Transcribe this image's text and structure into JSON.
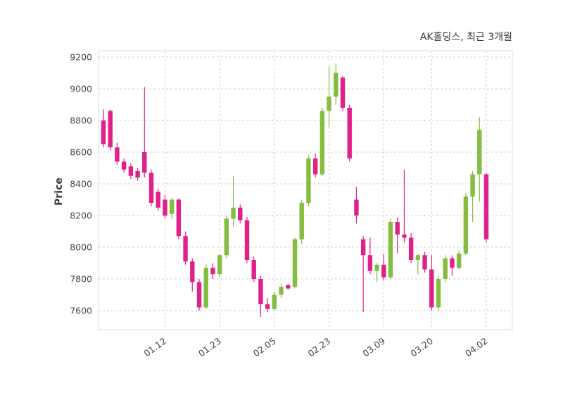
{
  "chart_data": {
    "type": "candlestick",
    "title": "AK홀딩스, 최근 3개월",
    "ylabel": "Price",
    "grid": "dashed",
    "legend": "none",
    "ylim": [
      7480,
      9240
    ],
    "y_ticks": [
      7600,
      7800,
      8000,
      8200,
      8400,
      8600,
      8800,
      9000,
      9200
    ],
    "x_tick_labels": [
      "01.12",
      "01.23",
      "02.05",
      "02.23",
      "03.09",
      "03.20",
      "04.02"
    ],
    "x_tick_indices": [
      9,
      17,
      25,
      33,
      41,
      48,
      56
    ],
    "up_color": "#84bd3f",
    "down_color": "#e0218a",
    "candles_format": [
      "open",
      "high",
      "low",
      "close"
    ],
    "candles": [
      [
        8800,
        8870,
        8630,
        8650
      ],
      [
        8860,
        8870,
        8610,
        8630
      ],
      [
        8630,
        8660,
        8520,
        8540
      ],
      [
        8540,
        8560,
        8470,
        8490
      ],
      [
        8510,
        8530,
        8430,
        8450
      ],
      [
        8480,
        8500,
        8420,
        8440
      ],
      [
        8600,
        9010,
        8440,
        8470
      ],
      [
        8470,
        8490,
        8260,
        8280
      ],
      [
        8350,
        8370,
        8230,
        8250
      ],
      [
        8300,
        8330,
        8180,
        8200
      ],
      [
        8210,
        8310,
        8180,
        8300
      ],
      [
        8300,
        8310,
        8050,
        8070
      ],
      [
        8070,
        8100,
        7890,
        7910
      ],
      [
        7910,
        7930,
        7720,
        7780
      ],
      [
        7780,
        7800,
        7600,
        7620
      ],
      [
        7620,
        7890,
        7610,
        7870
      ],
      [
        7870,
        7900,
        7800,
        7830
      ],
      [
        7830,
        7960,
        7810,
        7950
      ],
      [
        7950,
        8200,
        7930,
        8180
      ],
      [
        8180,
        8450,
        8130,
        8250
      ],
      [
        8250,
        8270,
        8150,
        8170
      ],
      [
        8170,
        8190,
        7900,
        7920
      ],
      [
        7920,
        7940,
        7780,
        7800
      ],
      [
        7800,
        7820,
        7560,
        7640
      ],
      [
        7640,
        7680,
        7590,
        7610
      ],
      [
        7610,
        7720,
        7600,
        7700
      ],
      [
        7700,
        7770,
        7680,
        7750
      ],
      [
        7760,
        7770,
        7730,
        7740
      ],
      [
        7750,
        8060,
        7740,
        8050
      ],
      [
        8050,
        8300,
        8020,
        8280
      ],
      [
        8280,
        8580,
        8260,
        8560
      ],
      [
        8560,
        8590,
        8440,
        8460
      ],
      [
        8460,
        8880,
        8450,
        8860
      ],
      [
        8860,
        9140,
        8760,
        8950
      ],
      [
        8950,
        9160,
        8900,
        9100
      ],
      [
        9070,
        9080,
        8860,
        8880
      ],
      [
        8880,
        8900,
        8540,
        8560
      ],
      [
        8300,
        8380,
        8150,
        8200
      ],
      [
        8050,
        8070,
        7590,
        7950
      ],
      [
        7950,
        8060,
        7830,
        7850
      ],
      [
        7850,
        7900,
        7780,
        7890
      ],
      [
        7890,
        7960,
        7790,
        7810
      ],
      [
        7810,
        8180,
        7800,
        8160
      ],
      [
        8160,
        8190,
        7960,
        8080
      ],
      [
        8080,
        8490,
        8030,
        8060
      ],
      [
        8060,
        8090,
        7900,
        7920
      ],
      [
        7920,
        7960,
        7830,
        7950
      ],
      [
        7950,
        7970,
        7840,
        7860
      ],
      [
        7860,
        7950,
        7600,
        7620
      ],
      [
        7620,
        7820,
        7600,
        7800
      ],
      [
        7800,
        7950,
        7780,
        7930
      ],
      [
        7930,
        7950,
        7820,
        7870
      ],
      [
        7870,
        7980,
        7860,
        7960
      ],
      [
        7960,
        8340,
        7950,
        8320
      ],
      [
        8320,
        8480,
        8160,
        8460
      ],
      [
        8460,
        8820,
        8290,
        8740
      ],
      [
        8460,
        8470,
        8030,
        8050
      ]
    ]
  }
}
